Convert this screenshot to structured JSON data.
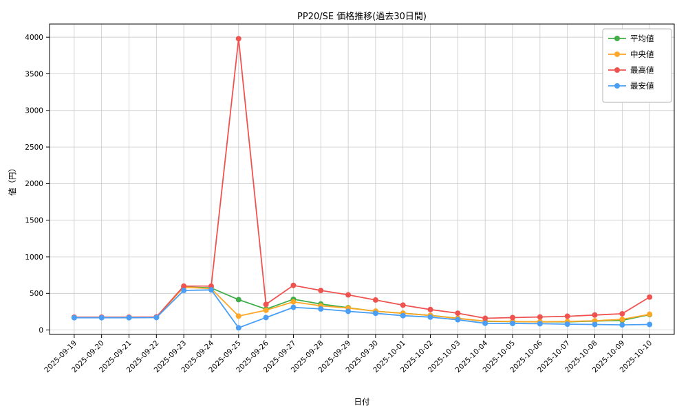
{
  "chart_data": {
    "type": "line",
    "title": "PP20/SE 価格推移(過去30日間)",
    "xlabel": "日付",
    "ylabel": "値（円）",
    "grid": true,
    "legend_position": "upper right",
    "ylim": [
      -60,
      4180
    ],
    "yticks": [
      0,
      500,
      1000,
      1500,
      2000,
      2500,
      3000,
      3500,
      4000
    ],
    "x": [
      "2025-09-19",
      "2025-09-20",
      "2025-09-21",
      "2025-09-22",
      "2025-09-23",
      "2025-09-24",
      "2025-09-25",
      "2025-09-26",
      "2025-09-27",
      "2025-09-28",
      "2025-09-29",
      "2025-09-30",
      "2025-10-01",
      "2025-10-02",
      "2025-10-03",
      "2025-10-04",
      "2025-10-05",
      "2025-10-06",
      "2025-10-07",
      "2025-10-08",
      "2025-10-09",
      "2025-10-10"
    ],
    "series": [
      {
        "name": "平均値",
        "color": "#3fae49",
        "values": [
          173,
          173,
          173,
          176,
          585,
          575,
          415,
          285,
          420,
          355,
          305,
          255,
          230,
          200,
          160,
          118,
          115,
          112,
          112,
          122,
          132,
          210
        ]
      },
      {
        "name": "中央値",
        "color": "#ffa726",
        "values": [
          173,
          173,
          173,
          176,
          585,
          565,
          190,
          270,
          385,
          330,
          300,
          258,
          228,
          200,
          158,
          122,
          116,
          112,
          116,
          126,
          146,
          215
        ]
      },
      {
        "name": "最高値",
        "color": "#ef5350",
        "values": [
          175,
          175,
          175,
          178,
          600,
          600,
          3980,
          350,
          610,
          540,
          480,
          410,
          340,
          280,
          230,
          160,
          170,
          178,
          188,
          205,
          222,
          450
        ]
      },
      {
        "name": "最安値",
        "color": "#4a9ff5",
        "values": [
          168,
          168,
          168,
          170,
          540,
          548,
          30,
          170,
          310,
          288,
          255,
          228,
          196,
          176,
          140,
          92,
          90,
          86,
          80,
          76,
          70,
          76
        ]
      }
    ],
    "colors": {
      "grid": "#c8c8c8",
      "axis_border": "#000000",
      "legend_border": "#b3b3b3",
      "background": "#ffffff"
    }
  }
}
